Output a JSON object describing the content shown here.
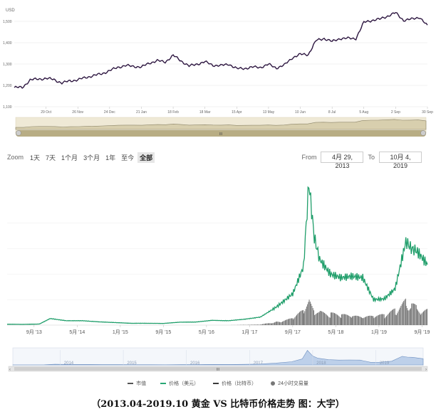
{
  "gold_chart": {
    "unit_label": "USD",
    "y_ticks": [
      "1,100",
      "1,200",
      "1,300",
      "1,400",
      "1,500"
    ],
    "x_ticks": [
      "29 Oct",
      "26 Nov",
      "24 Dec",
      "21 Jan",
      "18 Feb",
      "18 Mar",
      "15 Apr",
      "13 May",
      "10 Jun",
      "8 Jul",
      "5 Aug",
      "2 Sep",
      "30 Sep"
    ],
    "navigator_label": "III"
  },
  "btc_chart": {
    "zoom_label": "Zoom",
    "zoom_buttons": [
      "1天",
      "7天",
      "1个月",
      "3个月",
      "1年",
      "至今",
      "全部"
    ],
    "from_label": "From",
    "from_value": "4月 29, 2013",
    "to_label": "To",
    "to_value": "10月 4, 2019",
    "x_ticks": [
      "9月 '13",
      "5月 '14",
      "1月 '15",
      "9月 '15",
      "5月 '16",
      "1月 '17",
      "9月 '17",
      "5月 '18",
      "1月 '19",
      "9月 '19"
    ],
    "navigator_years": [
      "2014",
      "2015",
      "2016",
      "2017",
      "2018",
      "2019"
    ],
    "navigator_label": "III"
  },
  "legend": {
    "items": [
      "市值",
      "价格（美元）",
      "价格（比特币）",
      "24小时交易量"
    ],
    "colors": [
      "#555555",
      "#2aa876",
      "#3b3b3b",
      "#777777"
    ]
  },
  "caption": "（2013.04-2019.10  黄金 VS 比特币价格走势  图：大宇）",
  "colors": {
    "gold_line": "#2d1640",
    "btc_line": "#1f9e6a",
    "volume": "#666666",
    "navigator_fill": "#d8cfae",
    "navigator_fill2": "#bdd0ea"
  },
  "chart_data": [
    {
      "type": "line",
      "title": "",
      "xlabel": "",
      "ylabel": "USD",
      "ylim": [
        1100,
        1560
      ],
      "x": [
        "2018-10-01",
        "2018-10-08",
        "2018-10-15",
        "2018-10-22",
        "2018-10-29",
        "2018-11-05",
        "2018-11-12",
        "2018-11-19",
        "2018-11-26",
        "2018-12-03",
        "2018-12-10",
        "2018-12-17",
        "2018-12-24",
        "2018-12-31",
        "2019-01-07",
        "2019-01-14",
        "2019-01-21",
        "2019-01-28",
        "2019-02-04",
        "2019-02-11",
        "2019-02-18",
        "2019-02-25",
        "2019-03-04",
        "2019-03-11",
        "2019-03-18",
        "2019-03-25",
        "2019-04-01",
        "2019-04-08",
        "2019-04-15",
        "2019-04-22",
        "2019-04-29",
        "2019-05-06",
        "2019-05-13",
        "2019-05-20",
        "2019-05-27",
        "2019-06-03",
        "2019-06-10",
        "2019-06-17",
        "2019-06-24",
        "2019-07-01",
        "2019-07-08",
        "2019-07-15",
        "2019-07-22",
        "2019-07-29",
        "2019-08-05",
        "2019-08-12",
        "2019-08-19",
        "2019-08-26",
        "2019-09-02",
        "2019-09-09",
        "2019-09-16",
        "2019-09-23",
        "2019-09-30"
      ],
      "series": [
        {
          "values": [
            1190,
            1190,
            1225,
            1230,
            1232,
            1228,
            1210,
            1222,
            1225,
            1238,
            1245,
            1255,
            1268,
            1285,
            1292,
            1290,
            1285,
            1305,
            1315,
            1310,
            1340,
            1315,
            1290,
            1300,
            1310,
            1295,
            1292,
            1300,
            1278,
            1280,
            1285,
            1285,
            1298,
            1282,
            1295,
            1330,
            1345,
            1345,
            1410,
            1420,
            1405,
            1420,
            1420,
            1420,
            1495,
            1505,
            1510,
            1525,
            1540,
            1505,
            1510,
            1520,
            1478
          ]
        }
      ]
    },
    {
      "type": "line",
      "title": "",
      "xlabel": "",
      "ylabel": "",
      "ylim": [
        0,
        20000
      ],
      "x": [
        "2013-04",
        "2013-07",
        "2013-10",
        "2013-12",
        "2014-03",
        "2014-06",
        "2014-09",
        "2014-12",
        "2015-03",
        "2015-06",
        "2015-09",
        "2015-12",
        "2016-03",
        "2016-06",
        "2016-09",
        "2016-12",
        "2017-03",
        "2017-06",
        "2017-09",
        "2017-11",
        "2017-12",
        "2018-01",
        "2018-02",
        "2018-04",
        "2018-06",
        "2018-08",
        "2018-10",
        "2018-12",
        "2019-02",
        "2019-04",
        "2019-06",
        "2019-07",
        "2019-08",
        "2019-10"
      ],
      "series": [
        {
          "name": "价格（美元）",
          "values": [
            120,
            100,
            150,
            900,
            600,
            600,
            450,
            350,
            250,
            250,
            230,
            400,
            420,
            650,
            600,
            800,
            1100,
            2500,
            4300,
            8000,
            19500,
            12000,
            9000,
            7000,
            6500,
            6700,
            6500,
            3500,
            3600,
            5000,
            11500,
            10500,
            10200,
            8300
          ]
        },
        {
          "name": "24小时交易量",
          "values": [
            0,
            0,
            0,
            0,
            0,
            0,
            0,
            0,
            0,
            0,
            0,
            0,
            0,
            0,
            0,
            100,
            200,
            1500,
            2500,
            6000,
            9000,
            6000,
            5000,
            4500,
            4000,
            3500,
            3000,
            3500,
            4000,
            6000,
            9500,
            8000,
            7000,
            6000
          ]
        }
      ]
    }
  ]
}
